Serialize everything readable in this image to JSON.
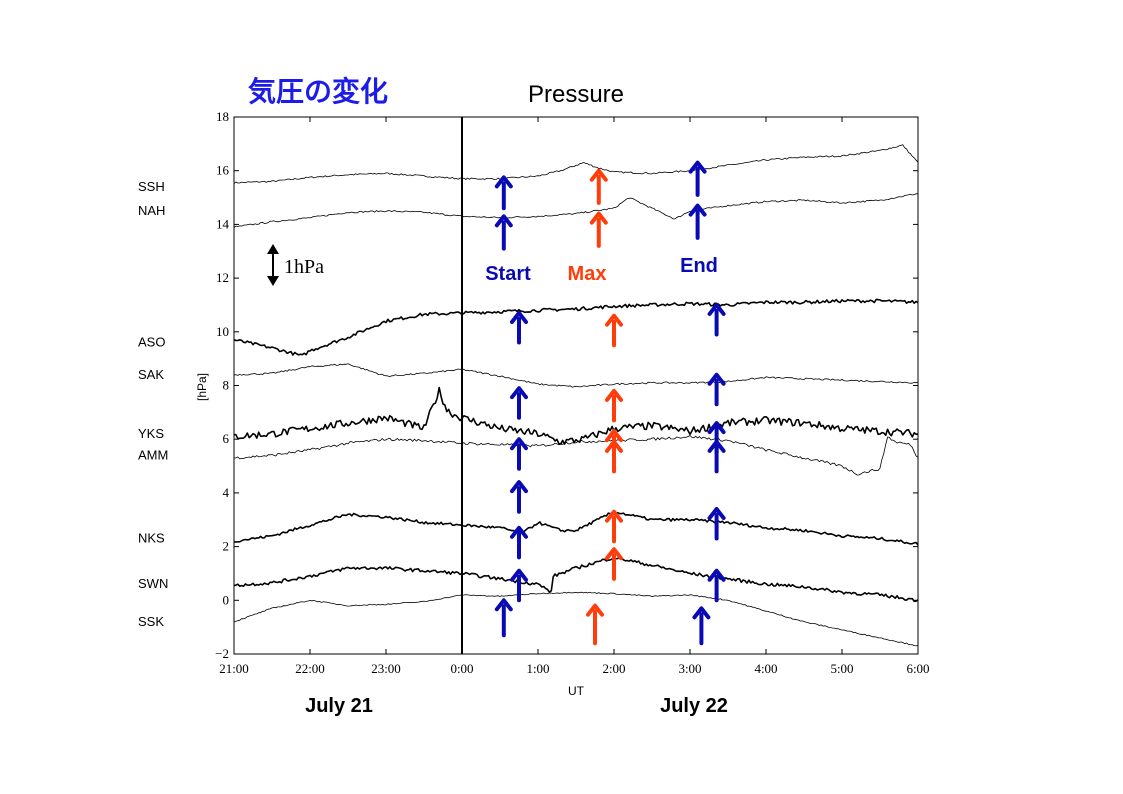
{
  "header": {
    "jp_title": "気圧の変化",
    "title": "Pressure"
  },
  "colors": {
    "jp_title": "#1c1ce6",
    "start_end_arrow": "#0a0ab4",
    "max_arrow": "#ff3c0a",
    "trace": "#000000"
  },
  "annotations": {
    "start": "Start",
    "max": "Max",
    "end": "End",
    "scale": "1hPa"
  },
  "dates": {
    "left": "July 21",
    "right": "July 22"
  },
  "chart_data": {
    "type": "line",
    "title": "Pressure",
    "xlabel": "UT",
    "ylabel": "[hPa]",
    "xlim": [
      -3,
      6
    ],
    "ylim": [
      -2,
      18
    ],
    "x_ticks": [
      {
        "x": -3,
        "label": "21:00"
      },
      {
        "x": -2,
        "label": "22:00"
      },
      {
        "x": -1,
        "label": "23:00"
      },
      {
        "x": 0,
        "label": "0:00"
      },
      {
        "x": 1,
        "label": "1:00"
      },
      {
        "x": 2,
        "label": "2:00"
      },
      {
        "x": 3,
        "label": "3:00"
      },
      {
        "x": 4,
        "label": "4:00"
      },
      {
        "x": 5,
        "label": "5:00"
      },
      {
        "x": 6,
        "label": "6:00"
      }
    ],
    "y_ticks": [
      {
        "y": 18,
        "label": "18"
      },
      {
        "y": 16,
        "label": "16"
      },
      {
        "y": 14,
        "label": "14"
      },
      {
        "y": 12,
        "label": "12"
      },
      {
        "y": 10,
        "label": "10"
      },
      {
        "y": 8,
        "label": "8"
      },
      {
        "y": 6,
        "label": "6"
      },
      {
        "y": 4,
        "label": "4"
      },
      {
        "y": 2,
        "label": "2"
      },
      {
        "y": 0,
        "label": "0"
      },
      {
        "y": -2,
        "label": "−2"
      }
    ],
    "series": [
      {
        "name": "SSH",
        "label_y": 15.4,
        "thick": false,
        "noise": 0.03,
        "x": [
          -3,
          -2.5,
          -2,
          -1.5,
          -1,
          -0.5,
          0,
          0.5,
          1,
          1.3,
          1.6,
          1.8,
          2,
          2.5,
          3,
          3.5,
          4,
          4.5,
          5,
          5.5,
          5.8,
          6
        ],
        "y": [
          15.55,
          15.6,
          15.75,
          15.85,
          15.9,
          15.8,
          15.7,
          15.7,
          15.8,
          16.0,
          16.3,
          16.1,
          15.95,
          15.9,
          16.0,
          16.2,
          16.4,
          16.5,
          16.55,
          16.75,
          16.95,
          16.3
        ]
      },
      {
        "name": "NAH",
        "label_y": 14.5,
        "thick": false,
        "noise": 0.03,
        "x": [
          -3,
          -2.5,
          -2,
          -1.5,
          -1,
          -0.5,
          0,
          0.5,
          1,
          1.5,
          2,
          2.2,
          2.5,
          2.8,
          3,
          3.5,
          4,
          4.5,
          5,
          5.5,
          6
        ],
        "y": [
          13.9,
          14.1,
          14.25,
          14.45,
          14.5,
          14.45,
          14.3,
          14.25,
          14.3,
          14.4,
          14.6,
          15.0,
          14.6,
          14.2,
          14.5,
          14.7,
          14.85,
          14.9,
          14.8,
          14.9,
          15.15
        ]
      },
      {
        "name": "ASO",
        "label_y": 9.6,
        "thick": true,
        "noise": 0.06,
        "x": [
          -3,
          -2.5,
          -2.1,
          -2,
          -1.5,
          -1,
          -0.5,
          0,
          0.5,
          1,
          1.5,
          2,
          2.5,
          3,
          3.5,
          4,
          4.5,
          5,
          5.5,
          6
        ],
        "y": [
          9.7,
          9.4,
          9.1,
          9.3,
          9.8,
          10.4,
          10.65,
          10.7,
          10.75,
          10.8,
          10.85,
          10.95,
          11.0,
          11.05,
          11.0,
          11.1,
          11.1,
          11.15,
          11.15,
          11.1
        ]
      },
      {
        "name": "SAK",
        "label_y": 8.4,
        "thick": false,
        "noise": 0.03,
        "x": [
          -3,
          -2.5,
          -2,
          -1.5,
          -1,
          -0.5,
          0,
          0.5,
          1,
          1.5,
          2,
          2.5,
          3,
          3.5,
          4,
          4.5,
          5,
          5.5,
          6
        ],
        "y": [
          8.4,
          8.45,
          8.7,
          8.8,
          8.35,
          8.45,
          8.6,
          8.35,
          8.05,
          7.95,
          8.05,
          8.1,
          8.1,
          8.15,
          8.3,
          8.25,
          8.2,
          8.15,
          8.1
        ]
      },
      {
        "name": "YKS",
        "label_y": 6.2,
        "thick": true,
        "noise": 0.14,
        "x": [
          -3,
          -2.5,
          -2,
          -1.5,
          -1,
          -0.5,
          -0.3,
          -0.2,
          -0.1,
          0,
          0.5,
          1,
          1.3,
          1.6,
          2,
          2.5,
          3,
          3.5,
          4,
          4.5,
          5,
          5.5,
          6
        ],
        "y": [
          6.1,
          6.2,
          6.4,
          6.6,
          6.8,
          6.4,
          7.8,
          7.1,
          6.9,
          6.8,
          6.4,
          6.2,
          5.9,
          6.0,
          6.4,
          6.5,
          6.3,
          6.6,
          6.7,
          6.6,
          6.4,
          6.3,
          6.2
        ]
      },
      {
        "name": "AMM",
        "label_y": 5.4,
        "thick": false,
        "noise": 0.05,
        "x": [
          -3,
          -2.5,
          -2,
          -1.5,
          -1,
          -0.5,
          0,
          0.5,
          1,
          1.5,
          2,
          2.5,
          3,
          3.5,
          4,
          4.5,
          5,
          5.2,
          5.5,
          5.6,
          5.7,
          5.9,
          6
        ],
        "y": [
          5.3,
          5.4,
          5.6,
          5.85,
          6.0,
          5.95,
          5.85,
          5.8,
          5.75,
          5.9,
          5.95,
          6.0,
          6.1,
          5.95,
          5.6,
          5.3,
          5.0,
          4.7,
          4.9,
          6.1,
          5.9,
          5.8,
          5.3
        ]
      },
      {
        "name": "NKS",
        "label_y": 2.3,
        "thick": true,
        "noise": 0.05,
        "x": [
          -3,
          -2.5,
          -2,
          -1.5,
          -1,
          -0.5,
          0,
          0.5,
          0.8,
          1,
          1.3,
          1.5,
          2,
          2.5,
          3,
          3.5,
          4,
          4.5,
          5,
          5.5,
          6
        ],
        "y": [
          2.2,
          2.4,
          2.8,
          3.2,
          3.1,
          2.9,
          2.8,
          2.7,
          2.5,
          2.9,
          2.6,
          2.6,
          3.3,
          3.0,
          3.0,
          2.9,
          2.7,
          2.6,
          2.4,
          2.3,
          2.1
        ]
      },
      {
        "name": "SWN",
        "label_y": 0.6,
        "thick": true,
        "noise": 0.06,
        "x": [
          -3,
          -2.5,
          -2,
          -1.5,
          -1,
          -0.5,
          0,
          0.5,
          1,
          1.18,
          1.2,
          1.5,
          2,
          2.5,
          3,
          3.5,
          4,
          4.5,
          5,
          5.5,
          6
        ],
        "y": [
          0.55,
          0.65,
          0.9,
          1.2,
          1.2,
          1.1,
          1.0,
          0.8,
          0.6,
          0.3,
          0.9,
          1.2,
          1.6,
          1.3,
          1.0,
          0.8,
          0.6,
          0.5,
          0.3,
          0.2,
          0.0
        ]
      },
      {
        "name": "SSK",
        "label_y": -0.8,
        "thick": false,
        "noise": 0.02,
        "x": [
          -3,
          -2.5,
          -2,
          -1.5,
          -1,
          -0.5,
          0,
          0.5,
          1,
          1.5,
          2,
          2.5,
          3,
          3.5,
          4,
          4.5,
          5,
          5.5,
          6
        ],
        "y": [
          -0.8,
          -0.3,
          0.0,
          -0.2,
          -0.15,
          -0.05,
          0.2,
          0.15,
          0.25,
          0.3,
          0.25,
          0.15,
          0.2,
          0.0,
          -0.4,
          -0.8,
          -1.1,
          -1.4,
          -1.7
        ]
      }
    ],
    "event_line_x": 0,
    "arrows": [
      {
        "kind": "start",
        "x": 0.55,
        "tip": 15.75,
        "tail": 14.6
      },
      {
        "kind": "start",
        "x": 0.55,
        "tip": 14.3,
        "tail": 13.1
      },
      {
        "kind": "max",
        "x": 1.8,
        "tip": 16.0,
        "tail": 14.8
      },
      {
        "kind": "max",
        "x": 1.8,
        "tip": 14.4,
        "tail": 13.2
      },
      {
        "kind": "end",
        "x": 3.1,
        "tip": 16.3,
        "tail": 15.1
      },
      {
        "kind": "end",
        "x": 3.1,
        "tip": 14.7,
        "tail": 13.5
      },
      {
        "kind": "start",
        "x": 0.75,
        "tip": 10.7,
        "tail": 9.6
      },
      {
        "kind": "max",
        "x": 2.0,
        "tip": 10.6,
        "tail": 9.5
      },
      {
        "kind": "end",
        "x": 3.35,
        "tip": 11.0,
        "tail": 9.9
      },
      {
        "kind": "start",
        "x": 0.75,
        "tip": 7.9,
        "tail": 6.8
      },
      {
        "kind": "max",
        "x": 2.0,
        "tip": 7.8,
        "tail": 6.7
      },
      {
        "kind": "end",
        "x": 3.35,
        "tip": 8.4,
        "tail": 7.3
      },
      {
        "kind": "start",
        "x": 0.75,
        "tip": 6.0,
        "tail": 4.9
      },
      {
        "kind": "max",
        "x": 2.0,
        "tip": 6.3,
        "tail": 5.2
      },
      {
        "kind": "end",
        "x": 3.35,
        "tip": 6.6,
        "tail": 5.5
      },
      {
        "kind": "start",
        "x": 0.75,
        "tip": 4.4,
        "tail": 3.3
      },
      {
        "kind": "max",
        "x": 2.0,
        "tip": 5.9,
        "tail": 4.8
      },
      {
        "kind": "end",
        "x": 3.35,
        "tip": 5.9,
        "tail": 4.8
      },
      {
        "kind": "start",
        "x": 0.75,
        "tip": 2.7,
        "tail": 1.6
      },
      {
        "kind": "max",
        "x": 2.0,
        "tip": 3.3,
        "tail": 2.2
      },
      {
        "kind": "end",
        "x": 3.35,
        "tip": 3.4,
        "tail": 2.3
      },
      {
        "kind": "start",
        "x": 0.75,
        "tip": 1.1,
        "tail": 0.0
      },
      {
        "kind": "max",
        "x": 2.0,
        "tip": 1.9,
        "tail": 0.8
      },
      {
        "kind": "end",
        "x": 3.35,
        "tip": 1.1,
        "tail": 0.0
      },
      {
        "kind": "start",
        "x": 0.55,
        "tip": 0.0,
        "tail": -1.3
      },
      {
        "kind": "max",
        "x": 1.75,
        "tip": -0.2,
        "tail": -1.6
      },
      {
        "kind": "end",
        "x": 3.15,
        "tip": -0.3,
        "tail": -1.6
      }
    ]
  }
}
